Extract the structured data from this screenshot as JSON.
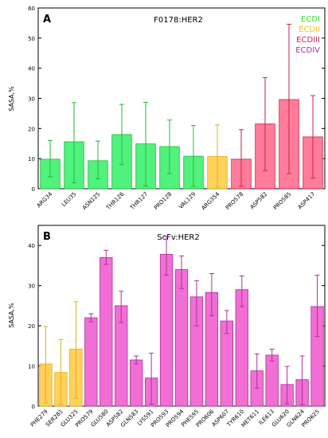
{
  "chart_data": [
    {
      "type": "bar",
      "panel_label": "A",
      "title": "F0178:HER2",
      "ylabel": "SASA,%",
      "ylim": [
        0,
        60
      ],
      "yticks": [
        0,
        10,
        20,
        30,
        40,
        50,
        60
      ],
      "categories": [
        "ARG34",
        "LEU35",
        "ASN125",
        "THR126",
        "THR127",
        "PRO128",
        "VAL129",
        "ARG354",
        "PRO578",
        "ASP582",
        "PRO585",
        "ASP417"
      ],
      "values": [
        9.8,
        15.6,
        9.3,
        18.0,
        14.9,
        14.0,
        10.8,
        10.7,
        9.8,
        21.5,
        29.6,
        17.2
      ],
      "err_low": [
        4.0,
        2.0,
        3.3,
        8.0,
        0.9,
        5.0,
        0.8,
        0.7,
        0.8,
        6.0,
        5.0,
        3.5
      ],
      "err_high": [
        16.0,
        28.6,
        15.8,
        28.0,
        28.7,
        22.8,
        21.0,
        21.2,
        19.6,
        36.9,
        54.6,
        30.9
      ],
      "domain": [
        "ECDI",
        "ECDI",
        "ECDI",
        "ECDI",
        "ECDI",
        "ECDI",
        "ECDI",
        "ECDII",
        "ECDIII",
        "ECDIII",
        "ECDIII",
        "ECDIII"
      ],
      "legend": [
        {
          "label": "ECDI",
          "color": "#33dd33"
        },
        {
          "label": "ECDII",
          "color": "#f2c12e"
        },
        {
          "label": "ECDIII",
          "color": "#cc2255"
        },
        {
          "label": "ECDIV",
          "color": "#aa33aa"
        }
      ],
      "legend_position": "top-right",
      "colors": {
        "ECDI": "#33ee66",
        "ECDII": "#ffc83d",
        "ECDIII": "#ff6688",
        "ECDIV": "#ee55cc"
      },
      "error_colors": {
        "ECDI": "#22bb33",
        "ECDII": "#e0b020",
        "ECDIII": "#cc2244",
        "ECDIV": "#aa3399"
      }
    },
    {
      "type": "bar",
      "panel_label": "B",
      "title": "ScFv:HER2",
      "ylabel": "SASA,%",
      "ylim": [
        0,
        45
      ],
      "yticks": [
        0,
        10,
        20,
        30,
        40
      ],
      "categories": [
        "PHE279",
        "SER281",
        "GLU325",
        "PRO579",
        "GLU580",
        "ASP582",
        "GLN583",
        "LYS591",
        "PRO593",
        "PRO594",
        "PHE595",
        "PRO606",
        "ASP607",
        "TYR610",
        "MET611",
        "ILE613",
        "GLU620",
        "GLN624",
        "PRO625"
      ],
      "values": [
        10.5,
        8.4,
        14.2,
        22.0,
        37.0,
        25.0,
        11.5,
        7.0,
        37.8,
        34.0,
        27.2,
        28.3,
        21.2,
        29.0,
        8.8,
        12.7,
        5.4,
        6.6,
        24.8
      ],
      "err_low": [
        0.8,
        0.4,
        2.0,
        21.0,
        35.3,
        20.8,
        10.5,
        0.5,
        32.6,
        29.3,
        20.0,
        22.5,
        18.1,
        24.8,
        4.5,
        11.2,
        0.6,
        0.4,
        17.3
      ],
      "err_high": [
        19.8,
        16.6,
        26.0,
        23.0,
        38.8,
        28.6,
        12.5,
        13.2,
        42.3,
        37.4,
        31.2,
        33.0,
        23.8,
        32.4,
        13.0,
        14.2,
        9.9,
        12.5,
        32.6
      ],
      "domain": [
        "ECDII",
        "ECDII",
        "ECDII",
        "ECDIV",
        "ECDIV",
        "ECDIV",
        "ECDIV",
        "ECDIV",
        "ECDIV",
        "ECDIV",
        "ECDIV",
        "ECDIV",
        "ECDIV",
        "ECDIV",
        "ECDIV",
        "ECDIV",
        "ECDIV",
        "ECDIV",
        "ECDIV"
      ],
      "colors": {
        "ECDI": "#33ee66",
        "ECDII": "#ffc83d",
        "ECDIII": "#ff6688",
        "ECDIV": "#ee55cc"
      },
      "error_colors": {
        "ECDI": "#22bb33",
        "ECDII": "#e0b020",
        "ECDIII": "#cc2244",
        "ECDIV": "#aa3399"
      }
    }
  ]
}
